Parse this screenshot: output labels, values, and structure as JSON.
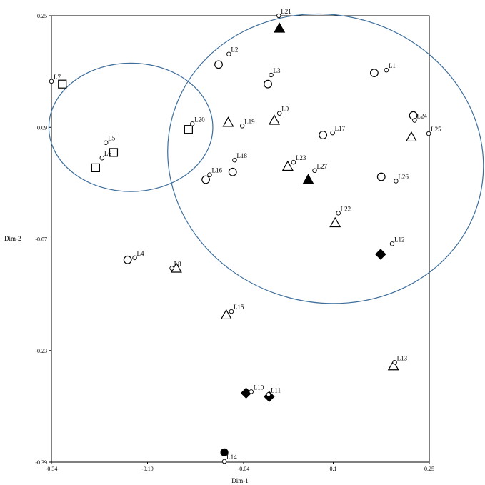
{
  "chart_data": {
    "type": "scatter",
    "title": "",
    "xlabel": "Dim-1",
    "ylabel": "Dim-2",
    "xlim": [
      -0.34,
      0.25
    ],
    "ylim": [
      -0.39,
      0.25
    ],
    "x_ticks": [
      {
        "value": -0.34,
        "label": "-0.34"
      },
      {
        "value": -0.19,
        "label": "-0.19"
      },
      {
        "value": -0.04,
        "label": "-0.04"
      },
      {
        "value": 0.1,
        "label": "0.1"
      },
      {
        "value": 0.25,
        "label": "0.25"
      }
    ],
    "y_ticks": [
      {
        "value": 0.25,
        "label": "0.25"
      },
      {
        "value": 0.09,
        "label": "0.09"
      },
      {
        "value": -0.07,
        "label": "-0.07"
      },
      {
        "value": -0.23,
        "label": "-0.23"
      },
      {
        "value": -0.39,
        "label": "-0.39"
      }
    ],
    "points": [
      {
        "label": "L1",
        "x": 0.183,
        "y": 0.172
      },
      {
        "label": "L2",
        "x": -0.063,
        "y": 0.195
      },
      {
        "label": "L3",
        "x": 0.003,
        "y": 0.165
      },
      {
        "label": "L4",
        "x": -0.21,
        "y": -0.097
      },
      {
        "label": "L5",
        "x": -0.255,
        "y": 0.068
      },
      {
        "label": "L6",
        "x": -0.261,
        "y": 0.046
      },
      {
        "label": "L7",
        "x": -0.34,
        "y": 0.156
      },
      {
        "label": "L8",
        "x": -0.152,
        "y": -0.112
      },
      {
        "label": "L9",
        "x": 0.016,
        "y": 0.11
      },
      {
        "label": "L10",
        "x": -0.028,
        "y": -0.289
      },
      {
        "label": "L11",
        "x": -0.001,
        "y": -0.293
      },
      {
        "label": "L12",
        "x": 0.192,
        "y": -0.077
      },
      {
        "label": "L13",
        "x": 0.196,
        "y": -0.247
      },
      {
        "label": "L14",
        "x": -0.07,
        "y": -0.389
      },
      {
        "label": "L15",
        "x": -0.059,
        "y": -0.174
      },
      {
        "label": "L16",
        "x": -0.093,
        "y": 0.022
      },
      {
        "label": "L17",
        "x": 0.099,
        "y": 0.082
      },
      {
        "label": "L18",
        "x": -0.054,
        "y": 0.043
      },
      {
        "label": "L19",
        "x": -0.042,
        "y": 0.092
      },
      {
        "label": "L20",
        "x": -0.12,
        "y": 0.095
      },
      {
        "label": "L21",
        "x": 0.015,
        "y": 0.25
      },
      {
        "label": "L22",
        "x": 0.108,
        "y": -0.033
      },
      {
        "label": "L23",
        "x": 0.038,
        "y": 0.04
      },
      {
        "label": "L24",
        "x": 0.227,
        "y": 0.1
      },
      {
        "label": "L25",
        "x": 0.249,
        "y": 0.081
      },
      {
        "label": "L26",
        "x": 0.198,
        "y": 0.013
      },
      {
        "label": "L27",
        "x": 0.071,
        "y": 0.028
      }
    ],
    "markers": [
      {
        "shape": "circle-open",
        "x": 0.164,
        "y": 0.168
      },
      {
        "shape": "circle-open",
        "x": 0.225,
        "y": 0.107
      },
      {
        "shape": "circle-open",
        "x": 0.084,
        "y": 0.079
      },
      {
        "shape": "circle-open",
        "x": 0.175,
        "y": 0.019
      },
      {
        "shape": "circle-open",
        "x": -0.079,
        "y": 0.18
      },
      {
        "shape": "circle-open",
        "x": -0.002,
        "y": 0.152
      },
      {
        "shape": "circle-open",
        "x": -0.057,
        "y": 0.026
      },
      {
        "shape": "circle-open",
        "x": -0.099,
        "y": 0.015
      },
      {
        "shape": "circle-open",
        "x": -0.221,
        "y": -0.1
      },
      {
        "shape": "square-open",
        "x": -0.323,
        "y": 0.152
      },
      {
        "shape": "square-open",
        "x": -0.126,
        "y": 0.087
      },
      {
        "shape": "square-open",
        "x": -0.243,
        "y": 0.054
      },
      {
        "shape": "square-open",
        "x": -0.271,
        "y": 0.032
      },
      {
        "shape": "triangle-open",
        "x": -0.064,
        "y": 0.097
      },
      {
        "shape": "triangle-open",
        "x": 0.008,
        "y": 0.1
      },
      {
        "shape": "triangle-open",
        "x": 0.029,
        "y": 0.034
      },
      {
        "shape": "triangle-open",
        "x": 0.103,
        "y": -0.047
      },
      {
        "shape": "triangle-open",
        "x": 0.222,
        "y": 0.076
      },
      {
        "shape": "triangle-open",
        "x": -0.145,
        "y": -0.112
      },
      {
        "shape": "triangle-open",
        "x": -0.067,
        "y": -0.179
      },
      {
        "shape": "triangle-open",
        "x": 0.194,
        "y": -0.252
      },
      {
        "shape": "triangle-filled",
        "x": 0.016,
        "y": 0.232
      },
      {
        "shape": "triangle-filled",
        "x": 0.061,
        "y": 0.015
      },
      {
        "shape": "diamond-filled",
        "x": 0.174,
        "y": -0.092
      },
      {
        "shape": "diamond-filled",
        "x": -0.036,
        "y": -0.291
      },
      {
        "shape": "diamond-filled",
        "x": 0.0,
        "y": -0.296
      },
      {
        "shape": "circle-filled",
        "x": -0.07,
        "y": -0.376
      }
    ],
    "ellipses": [
      {
        "center": [
          -0.216,
          0.09
        ],
        "radius": [
          0.128,
          0.092
        ],
        "color": "#3d6e9c"
      },
      {
        "center": [
          0.088,
          0.045
        ],
        "radius": [
          0.248,
          0.206
        ],
        "color": "#3d6e9c",
        "rotation_deg": 15
      }
    ],
    "grid": false,
    "legend": "none",
    "colors": {
      "axis": "#000000",
      "ellipse": "#3d6e9c",
      "marker": "#000000"
    }
  }
}
